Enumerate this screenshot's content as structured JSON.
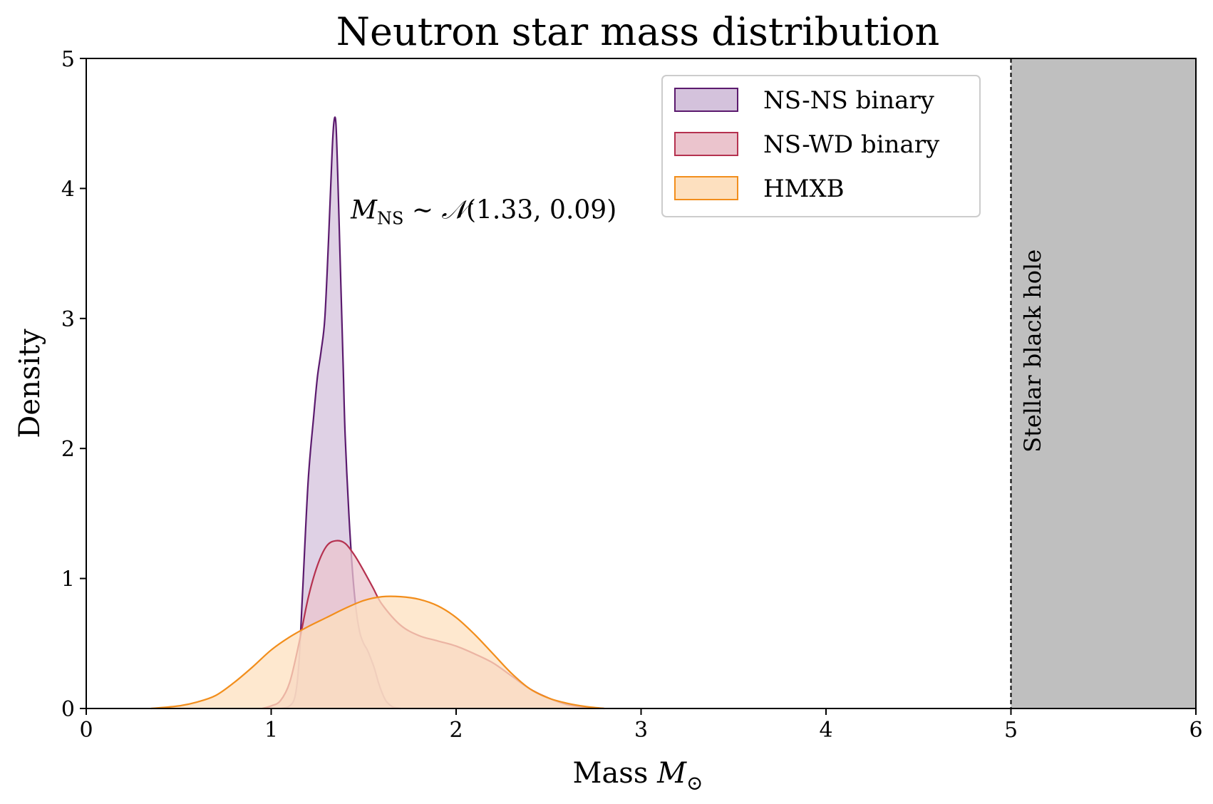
{
  "chart_data": {
    "type": "area",
    "title": "Neutron star mass distribution",
    "xlabel_text": "Mass",
    "xlabel_symbol": "M",
    "xlabel_subscript": "⊙",
    "ylabel": "Density",
    "xlim": [
      0,
      6
    ],
    "ylim": [
      0,
      5
    ],
    "xticks": [
      "0",
      "1",
      "2",
      "3",
      "4",
      "5",
      "6"
    ],
    "yticks": [
      "0",
      "1",
      "2",
      "3",
      "4",
      "5"
    ],
    "grid": false,
    "legend_position": "top-right",
    "series": [
      {
        "name": "NS-NS binary",
        "stroke": "#5b1a6e",
        "fill": "#d4c2dc",
        "x": [
          1.05,
          1.1,
          1.13,
          1.15,
          1.17,
          1.2,
          1.23,
          1.25,
          1.27,
          1.29,
          1.31,
          1.33,
          1.34,
          1.35,
          1.36,
          1.37,
          1.38,
          1.39,
          1.4,
          1.42,
          1.44,
          1.46,
          1.48,
          1.5,
          1.52,
          1.54,
          1.56,
          1.58,
          1.6,
          1.62,
          1.64,
          1.66,
          1.68,
          1.7
        ],
        "y": [
          0.0,
          0.02,
          0.1,
          0.35,
          0.9,
          1.75,
          2.25,
          2.55,
          2.75,
          3.0,
          3.6,
          4.3,
          4.52,
          4.5,
          4.1,
          3.6,
          3.1,
          2.6,
          2.1,
          1.5,
          1.05,
          0.75,
          0.58,
          0.5,
          0.45,
          0.38,
          0.3,
          0.2,
          0.12,
          0.06,
          0.03,
          0.01,
          0.005,
          0.0
        ]
      },
      {
        "name": "NS-WD binary",
        "stroke": "#b5314f",
        "fill": "#ebc4cd",
        "x": [
          0.95,
          1.0,
          1.05,
          1.1,
          1.15,
          1.2,
          1.25,
          1.3,
          1.35,
          1.4,
          1.45,
          1.5,
          1.55,
          1.6,
          1.7,
          1.8,
          1.9,
          2.0,
          2.1,
          2.2,
          2.3,
          2.4,
          2.5,
          2.6,
          2.7,
          2.8
        ],
        "y": [
          0.0,
          0.02,
          0.06,
          0.2,
          0.5,
          0.85,
          1.1,
          1.25,
          1.29,
          1.27,
          1.18,
          1.06,
          0.93,
          0.8,
          0.64,
          0.56,
          0.52,
          0.48,
          0.42,
          0.35,
          0.25,
          0.15,
          0.08,
          0.03,
          0.01,
          0.0
        ]
      },
      {
        "name": "HMXB",
        "stroke": "#f28e1c",
        "fill": "#fde0bf",
        "x": [
          0.35,
          0.5,
          0.6,
          0.7,
          0.8,
          0.9,
          1.0,
          1.1,
          1.2,
          1.3,
          1.4,
          1.5,
          1.6,
          1.7,
          1.8,
          1.9,
          2.0,
          2.1,
          2.2,
          2.3,
          2.4,
          2.5,
          2.6,
          2.7,
          2.8
        ],
        "y": [
          0.0,
          0.02,
          0.05,
          0.1,
          0.2,
          0.32,
          0.45,
          0.55,
          0.63,
          0.7,
          0.77,
          0.83,
          0.86,
          0.86,
          0.84,
          0.79,
          0.7,
          0.57,
          0.42,
          0.27,
          0.15,
          0.08,
          0.04,
          0.015,
          0.0
        ]
      }
    ],
    "regions": [
      {
        "x_start": 5,
        "x_end": 6,
        "label": "Stellar black hole",
        "fill": "#bfbfbf",
        "boundary_line": "dashed"
      }
    ],
    "annotation": {
      "symbol": "M",
      "subscript": "NS",
      "relation": " ∼ ",
      "dist_symbol": "𝒩",
      "params": "(1.33, 0.09)",
      "x": 1.43,
      "y": 3.77
    }
  }
}
